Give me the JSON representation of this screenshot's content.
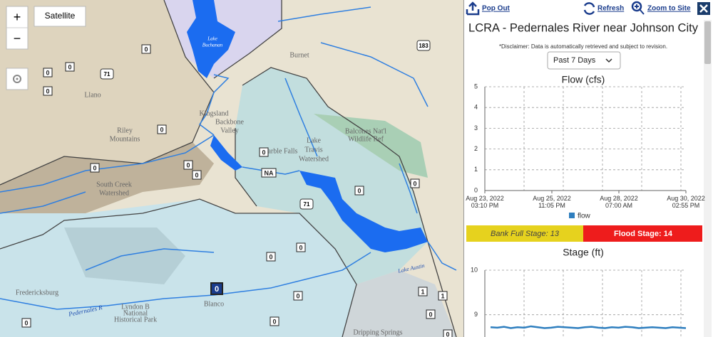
{
  "map": {
    "satellite_button": "Satellite",
    "zoom_in": "+",
    "zoom_out": "−",
    "labels": [
      "Lake",
      "Buchanan",
      "Llano",
      "Burnet",
      "Kingsland",
      "Backbone",
      "Valley",
      "Riley",
      "Mountains",
      "Marble Falls",
      "Lake",
      "Travis",
      "Watershed",
      "Balcones Nat'l",
      "Wildlife Ref",
      "South Creek",
      "Watershed",
      "Fredericksburg",
      "Blanco",
      "Lyndon B",
      "National",
      "Historical Park",
      "Pedernales R",
      "Dripping Springs",
      "Lake Austin"
    ],
    "shields": [
      "71",
      "183",
      "71"
    ],
    "markers": [
      "0",
      "0",
      "0",
      "0",
      "0",
      "0",
      "0",
      "0",
      "0",
      "NA",
      "0",
      "0",
      "0",
      "0",
      "0",
      "0",
      "0",
      "0",
      "1",
      "1",
      "0",
      "0"
    ]
  },
  "panel": {
    "pop_out": "Pop Out",
    "refresh": "Refresh",
    "zoom_to_site": "Zoom to Site",
    "title": "LCRA - Pedernales River near Johnson City",
    "disclaimer": "*Disclaimer: Data is automatically retrieved and subject to revision.",
    "period": "Past 7 Days",
    "bank_full": "Bank Full Stage: 13",
    "flood": "Flood Stage: 14"
  },
  "chart_data": [
    {
      "type": "line",
      "title": "Flow (cfs)",
      "ylim": [
        0,
        5
      ],
      "yticks": [
        0,
        1,
        2,
        3,
        4,
        5
      ],
      "grid": true,
      "xticks": [
        "Aug 23, 2022 03:10 PM",
        "Aug 25, 2022 11:05 PM",
        "Aug 28, 2022 07:00 AM",
        "Aug 30, 2022 02:55 PM"
      ],
      "series": [
        {
          "name": "flow",
          "color": "#2f7fbf",
          "values": []
        }
      ]
    },
    {
      "type": "line",
      "title": "Stage (ft)",
      "ylim": [
        8.5,
        10
      ],
      "yticks": [
        9,
        10
      ],
      "grid": true,
      "series": [
        {
          "color": "#2f7fbf",
          "values": [
            8.72,
            8.71,
            8.73,
            8.7,
            8.72,
            8.71,
            8.74,
            8.72,
            8.7,
            8.71,
            8.73,
            8.72,
            8.71,
            8.7,
            8.72,
            8.73,
            8.71,
            8.7,
            8.72,
            8.71,
            8.73,
            8.72,
            8.7,
            8.71,
            8.72,
            8.71,
            8.7,
            8.72,
            8.71,
            8.7
          ]
        }
      ]
    }
  ]
}
